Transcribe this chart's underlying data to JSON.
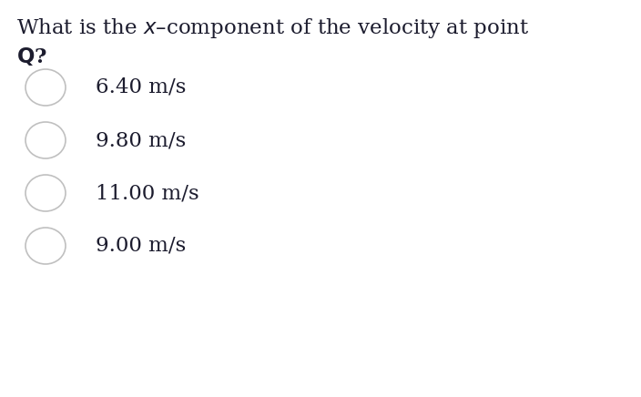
{
  "question_line1": "What is the $x$–component of the velocity at point",
  "question_line2": "$\\mathbf{Q}$?",
  "options": [
    "6.40 m/s",
    "9.80 m/s",
    "11.00 m/s",
    "9.00 m/s"
  ],
  "background_color": "#ffffff",
  "text_color": "#1c1c2e",
  "circle_edge_color": "#c0c0c0",
  "font_size_question": 16.5,
  "font_size_options": 16.5,
  "fig_width": 7.04,
  "fig_height": 4.36,
  "dpi": 100
}
